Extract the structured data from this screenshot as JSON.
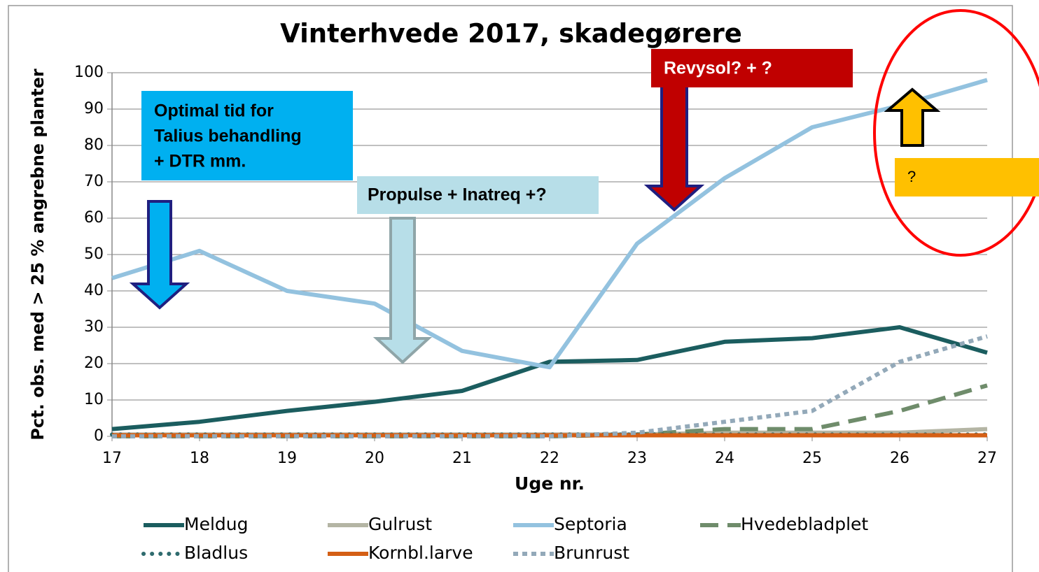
{
  "chart_data": {
    "type": "line",
    "title": "Vinterhvede 2017, skadegørere",
    "x_label": "Uge nr.",
    "y_label": "Pct. obs. med > 25 % angrebne planter",
    "x": [
      17,
      18,
      19,
      20,
      21,
      22,
      23,
      24,
      25,
      26,
      27
    ],
    "xlim": [
      17,
      27
    ],
    "xticks": [
      17,
      18,
      19,
      20,
      21,
      22,
      23,
      24,
      25,
      26,
      27
    ],
    "ylim": [
      0,
      100
    ],
    "yticks": [
      0,
      10,
      20,
      30,
      40,
      50,
      60,
      70,
      80,
      90,
      100
    ],
    "grid": true,
    "legend": "bottom",
    "series": [
      {
        "name": "Meldug",
        "color": "#1b5d5f",
        "dash": "solid",
        "values": [
          2,
          4,
          7,
          9.5,
          12.5,
          20.5,
          21,
          26,
          27,
          30,
          23
        ]
      },
      {
        "name": "Gulrust",
        "color": "#b4b5a4",
        "dash": "solid",
        "values": [
          0.5,
          0.5,
          0.5,
          0.5,
          0.5,
          0.5,
          0.5,
          1,
          1,
          1,
          2
        ]
      },
      {
        "name": "Septoria",
        "color": "#93c2df",
        "dash": "solid",
        "values": [
          43.5,
          51,
          40,
          36.5,
          23.5,
          19,
          53,
          71,
          85,
          91,
          98
        ]
      },
      {
        "name": "Hvedebladplet",
        "color": "#6f8c6b",
        "dash": "dash",
        "values": [
          0,
          0,
          0,
          0,
          0,
          0,
          0.5,
          2,
          2,
          7,
          14
        ]
      },
      {
        "name": "Bladlus",
        "color": "#2f6b6e",
        "dash": "dot",
        "values": [
          0.5,
          0.5,
          0.5,
          0.5,
          0.5,
          0.5,
          0.5,
          0.5,
          0.5,
          0.5,
          0.5
        ]
      },
      {
        "name": "Kornbl.larve",
        "color": "#d45f15",
        "dash": "solid",
        "values": [
          0.3,
          0.3,
          0.3,
          0.3,
          0.3,
          0.3,
          0.3,
          0.3,
          0.3,
          0.3,
          0.3
        ]
      },
      {
        "name": "Brunrust",
        "color": "#93a9b9",
        "dash": "square-dot",
        "values": [
          0,
          0,
          0,
          0,
          0,
          0,
          1,
          4,
          7,
          20.5,
          27.5
        ]
      }
    ],
    "annotations": [
      {
        "lines": [
          "Optimal tid for",
          "Talius behandling",
          "+ DTR mm."
        ],
        "color": "#00b0f0",
        "text_color": "#000000"
      },
      {
        "lines": [
          "Propulse + Inatreq +?"
        ],
        "color": "#b7dee8",
        "text_color": "#000000"
      },
      {
        "lines": [
          "Revysol? + ?"
        ],
        "color": "#c00000",
        "text_color": "#ffffff"
      },
      {
        "lines": [
          "?"
        ],
        "color": "#ffc000",
        "text_color": "#000000"
      }
    ]
  }
}
